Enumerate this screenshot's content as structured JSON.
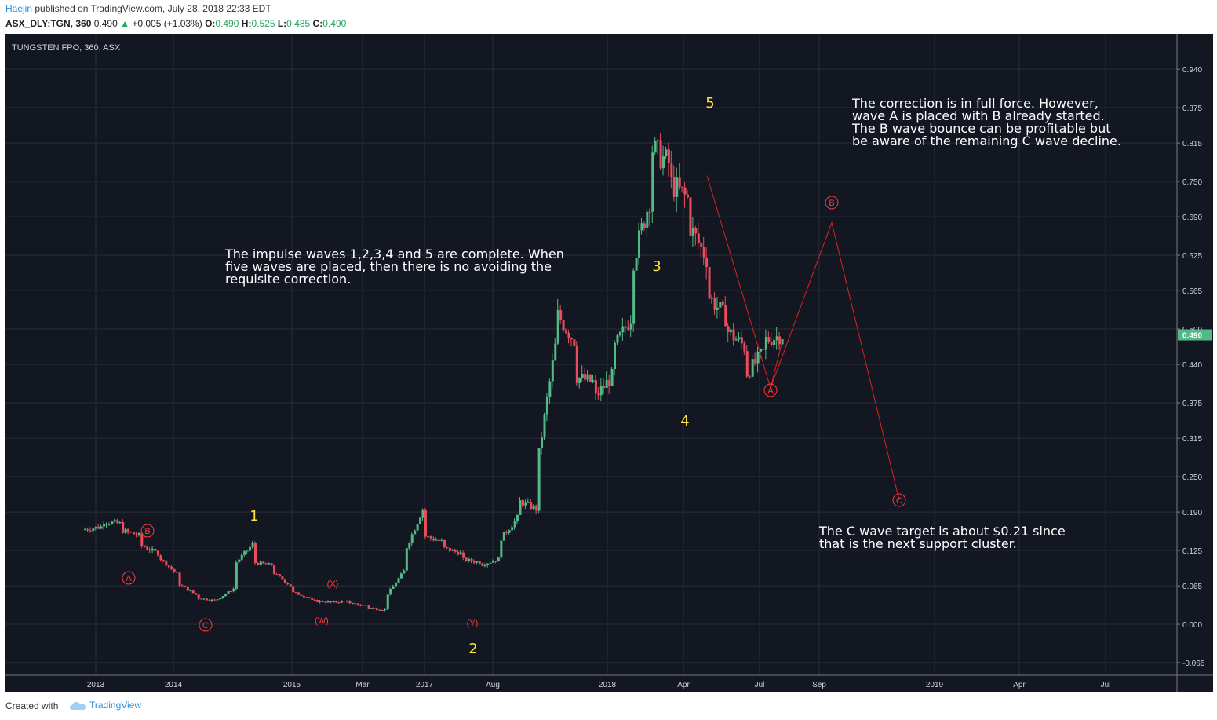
{
  "header": {
    "author": "Haejin",
    "published": "published on TradingView.com, July 28, 2018 22:33 EDT",
    "symbol": "ASX_DLY:TGN, 360",
    "last": "0.490",
    "change": "+0.005 (+1.03%)",
    "o_label": "O:",
    "o_value": "0.490",
    "h_label": "H:",
    "h_value": "0.525",
    "l_label": "L:",
    "l_value": "0.485",
    "c_label": "C:",
    "c_value": "0.490"
  },
  "footer": {
    "created_with": "Created with",
    "brand": "TradingView"
  },
  "chart_data": {
    "type": "candlestick",
    "title": "TUNGSTEN FPO, 360, ASX",
    "ylim": [
      -0.09,
      0.96
    ],
    "y_ticks": [
      "0.940",
      "0.875",
      "0.815",
      "0.750",
      "0.690",
      "0.625",
      "0.565",
      "0.500",
      "0.440",
      "0.375",
      "0.315",
      "0.250",
      "0.190",
      "0.125",
      "0.065",
      "0.000",
      "-0.065"
    ],
    "x_ticks": [
      "2013",
      "2014",
      "2015",
      "Mar",
      "2017",
      "Aug",
      "2018",
      "Apr",
      "Jul",
      "Sep",
      "2019",
      "Apr",
      "Jul"
    ],
    "last_price_label": "0.490",
    "colors": {
      "up": "#53b987",
      "down": "#eb4d5c",
      "background": "#131722",
      "annotation": "#ff3b3b",
      "wave": "#ffe33b",
      "projection": "#e02020"
    },
    "price_path": [
      [
        0.16,
        0.165
      ],
      [
        0.175,
        0.17
      ],
      [
        0.16,
        0.15
      ],
      [
        0.135,
        0.12
      ],
      [
        0.115,
        0.085
      ],
      [
        0.07,
        0.05
      ],
      [
        0.045,
        0.04
      ],
      [
        0.04,
        0.06
      ],
      [
        0.1,
        0.135
      ],
      [
        0.105,
        0.1
      ],
      [
        0.09,
        0.065
      ],
      [
        0.055,
        0.045
      ],
      [
        0.04,
        0.038
      ],
      [
        0.036,
        0.04
      ],
      [
        0.035,
        0.032
      ],
      [
        0.028,
        0.025
      ],
      [
        0.045,
        0.09
      ],
      [
        0.12,
        0.195
      ],
      [
        0.15,
        0.14
      ],
      [
        0.13,
        0.12
      ],
      [
        0.11,
        0.105
      ],
      [
        0.1,
        0.11
      ],
      [
        0.14,
        0.18
      ],
      [
        0.21,
        0.195
      ],
      [
        0.26,
        0.47
      ],
      [
        0.53,
        0.48
      ],
      [
        0.42,
        0.41
      ],
      [
        0.38,
        0.42
      ],
      [
        0.46,
        0.52
      ],
      [
        0.6,
        0.72
      ],
      [
        0.81,
        0.78
      ],
      [
        0.75,
        0.72
      ],
      [
        0.68,
        0.62
      ],
      [
        0.56,
        0.52
      ],
      [
        0.5,
        0.47
      ],
      [
        0.42,
        0.46
      ],
      [
        0.48,
        0.49
      ]
    ],
    "wave_labels": [
      "1",
      "2",
      "3",
      "4",
      "5"
    ],
    "circle_labels": [
      "A",
      "B",
      "C",
      "A",
      "B",
      "C"
    ],
    "paren_labels": [
      "(X)",
      "(W)",
      "(Y)"
    ],
    "projection": [
      {
        "point": "A",
        "value": 0.4
      },
      {
        "point": "B",
        "value": 0.68
      },
      {
        "point": "C",
        "value": 0.21
      }
    ],
    "annotations": [
      [
        "The impulse waves 1,2,3,4 and 5 are complete. When",
        "five waves are placed, then there is no avoiding the",
        "requisite correction."
      ],
      [
        "The correction is in full force. However,",
        "wave A is placed with B already started.",
        "The B wave bounce can be profitable but",
        "be aware of the remaining C wave decline."
      ],
      [
        "The C wave target is about $0.21 since",
        "that is the next support cluster."
      ]
    ]
  }
}
